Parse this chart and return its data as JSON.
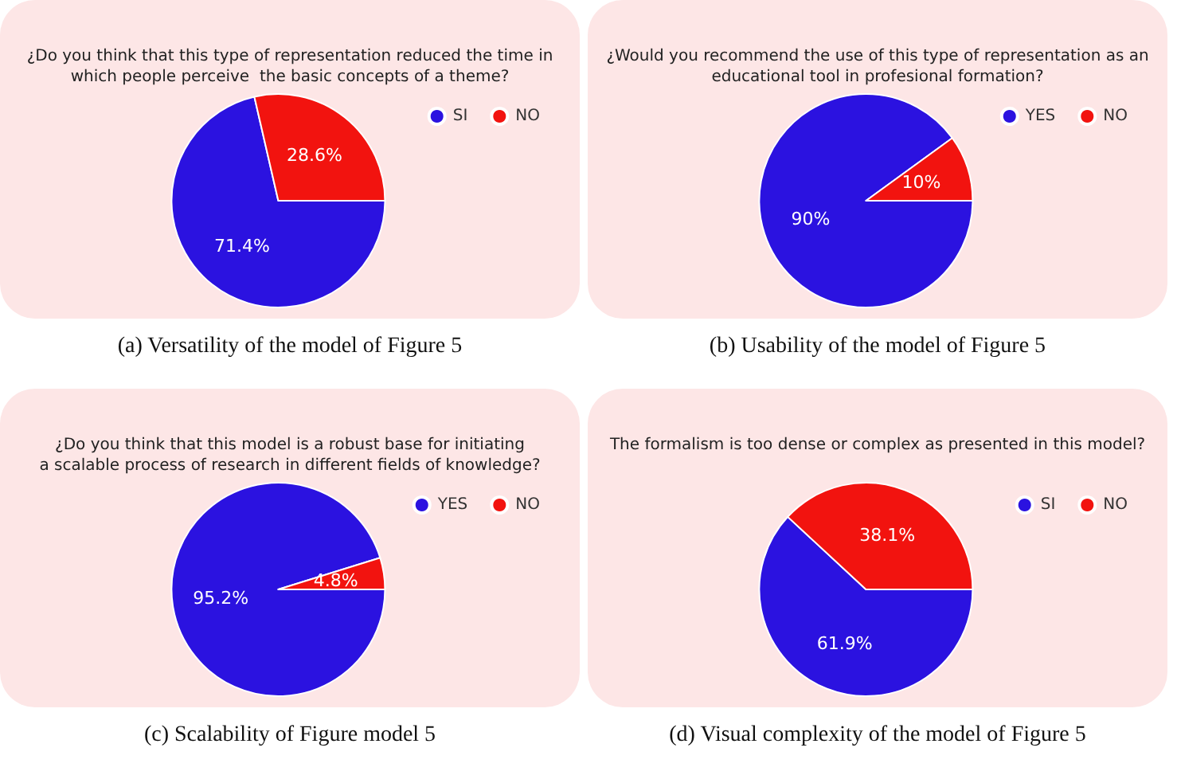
{
  "chart_data": [
    {
      "type": "pie",
      "title": "¿Do you think that this type of representation reduced the time in\nwhich people perceive  the basic concepts of a theme?",
      "categories": [
        "SI",
        "NO"
      ],
      "values": [
        71.4,
        28.6
      ],
      "colors": [
        "#2b12e0",
        "#f2130f"
      ],
      "value_labels": [
        "71.4%",
        "28.6%"
      ],
      "legend": "top right",
      "annotations": [
        "(a) Versatility of the model of Figure 5"
      ]
    },
    {
      "type": "pie",
      "title": "¿Would you recommend the use of this type of representation as an\neducational tool in profesional formation?",
      "categories": [
        "YES",
        "NO"
      ],
      "values": [
        90,
        10
      ],
      "colors": [
        "#2b12e0",
        "#f2130f"
      ],
      "value_labels": [
        "90%",
        "10%"
      ],
      "legend": "top right",
      "annotations": [
        "(b) Usability of the model of Figure 5"
      ]
    },
    {
      "type": "pie",
      "title": "¿Do you think that this model is a robust base for initiating\na scalable process of research in different fields of knowledge?",
      "categories": [
        "YES",
        "NO"
      ],
      "values": [
        95.2,
        4.8
      ],
      "colors": [
        "#2b12e0",
        "#f2130f"
      ],
      "value_labels": [
        "95.2%",
        "4.8%"
      ],
      "legend": "top right",
      "annotations": [
        "(c) Scalability of Figure model 5"
      ]
    },
    {
      "type": "pie",
      "title": "The formalism is too dense or complex as presented in this model?",
      "categories": [
        "SI",
        "NO"
      ],
      "values": [
        61.9,
        38.1
      ],
      "colors": [
        "#2b12e0",
        "#f2130f"
      ],
      "value_labels": [
        "61.9%",
        "38.1%"
      ],
      "legend": "top right",
      "annotations": [
        "(d) Visual complexity of the model of Figure 5"
      ]
    }
  ]
}
